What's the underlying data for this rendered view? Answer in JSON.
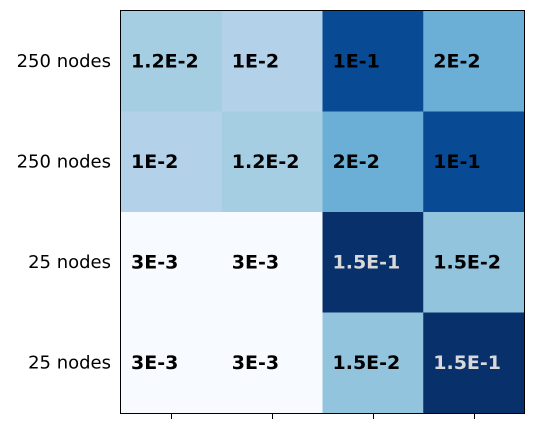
{
  "chart_data": {
    "type": "heatmap",
    "title": "",
    "xlabel": "",
    "ylabel": "",
    "rows": [
      "250 nodes",
      "250 nodes",
      "25 nodes",
      "25 nodes"
    ],
    "columns": [
      "",
      "",
      "",
      ""
    ],
    "values": [
      [
        0.012,
        0.01,
        0.1,
        0.02
      ],
      [
        0.01,
        0.012,
        0.02,
        0.1
      ],
      [
        0.003,
        0.003,
        0.15,
        0.015
      ],
      [
        0.003,
        0.003,
        0.015,
        0.15
      ]
    ],
    "labels": [
      [
        "1.2E-2",
        "1E-2",
        "1E-1",
        "2E-2"
      ],
      [
        "1E-2",
        "1.2E-2",
        "2E-2",
        "1E-1"
      ],
      [
        "3E-3",
        "3E-3",
        "1.5E-1",
        "1.5E-2"
      ],
      [
        "3E-3",
        "3E-3",
        "1.5E-2",
        "1.5E-1"
      ]
    ],
    "cell_colors": [
      [
        "#a6cee3",
        "#b3d1e8",
        "#084a93",
        "#6baed6"
      ],
      [
        "#b3d1e8",
        "#a6cee3",
        "#6baed6",
        "#084a93"
      ],
      [
        "#f7fbff",
        "#f7fbff",
        "#08306b",
        "#93c4de"
      ],
      [
        "#f7fbff",
        "#f7fbff",
        "#93c4de",
        "#08306b"
      ]
    ],
    "label_colors": [
      [
        "#000000",
        "#000000",
        "#000000",
        "#000000"
      ],
      [
        "#000000",
        "#000000",
        "#000000",
        "#000000"
      ],
      [
        "#000000",
        "#000000",
        "#d9d9d9",
        "#000000"
      ],
      [
        "#000000",
        "#000000",
        "#000000",
        "#d9d9d9"
      ]
    ],
    "colormap": "Blues",
    "grid": false,
    "legend": "none"
  }
}
